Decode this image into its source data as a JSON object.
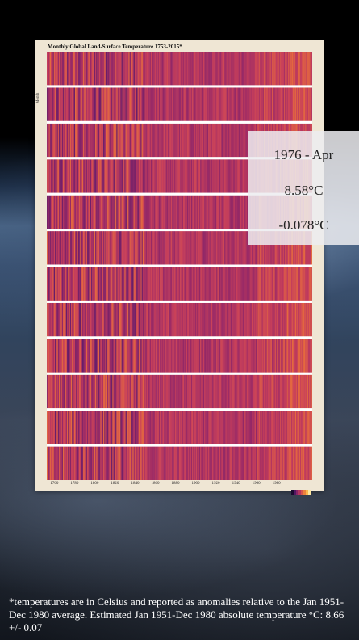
{
  "chart_data": {
    "type": "heatmap",
    "title": "Monthly Global Land-Surface Temperature 1753-2015*",
    "ylabel": "Month",
    "xlabel": "",
    "x_range": [
      1753,
      2015
    ],
    "x_ticks": [
      "1760",
      "1780",
      "1800",
      "1820",
      "1840",
      "1860",
      "1880",
      "1900",
      "1920",
      "1940",
      "1960",
      "1980"
    ],
    "rows": 12,
    "value_kind": "temperature anomaly (°C)",
    "colormap": [
      "#1a0a2e",
      "#5a1a6a",
      "#9a2a66",
      "#c8405a",
      "#e8703a",
      "#fbb040",
      "#fce6a0"
    ],
    "highlight": {
      "period": "1976 - Apr",
      "absolute": "8.58°C",
      "anomaly": "-0.078°C"
    }
  },
  "tooltip": {
    "period": "1976 - Apr",
    "absolute": "8.58°C",
    "anomaly": "-0.078°C"
  },
  "footnote": "*temperatures are in Celsius and reported as anomalies relative to the Jan 1951-Dec 1980 average. Estimated Jan 1951-Dec 1980 absolute temperature °C: 8.66 +/- 0.07",
  "colors": {
    "frame": "#efe6d4",
    "row_separator": "#ffffff"
  }
}
